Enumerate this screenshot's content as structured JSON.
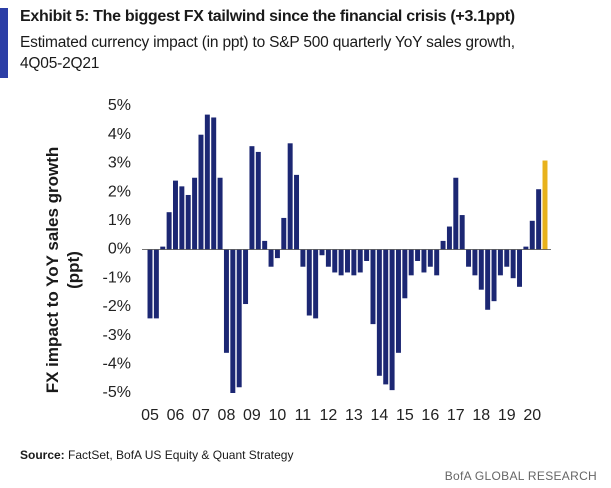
{
  "chart_data": {
    "type": "bar",
    "title": "Exhibit 5: The biggest FX tailwind since the financial crisis (+3.1ppt)",
    "subtitle": "Estimated currency impact (in ppt) to S&P 500 quarterly YoY sales growth, 4Q05-2Q21",
    "y_label": "FX impact to YoY sales growth (ppt)",
    "source_label": "Source:",
    "source": "FactSet, BofA US Equity & Quant Strategy",
    "brand": "BofA GLOBAL RESEARCH",
    "categories": [
      "05",
      null,
      null,
      null,
      "06",
      null,
      null,
      null,
      "07",
      null,
      null,
      null,
      "08",
      null,
      null,
      null,
      "09",
      null,
      null,
      null,
      "10",
      null,
      null,
      null,
      "11",
      null,
      null,
      null,
      "12",
      null,
      null,
      null,
      "13",
      null,
      null,
      null,
      "14",
      null,
      null,
      null,
      "15",
      null,
      null,
      null,
      "16",
      null,
      null,
      null,
      "17",
      null,
      null,
      null,
      "18",
      null,
      null,
      null,
      "19",
      null,
      null,
      null,
      "20",
      null,
      null
    ],
    "values": [
      -2.4,
      -2.4,
      0.1,
      1.3,
      2.4,
      2.2,
      1.9,
      2.5,
      4.0,
      4.7,
      4.6,
      2.5,
      -3.6,
      -5.0,
      -4.8,
      -1.9,
      3.6,
      3.4,
      0.3,
      -0.6,
      -0.3,
      1.1,
      3.7,
      2.6,
      -0.6,
      -2.3,
      -2.4,
      -0.2,
      -0.6,
      -0.8,
      -0.9,
      -0.8,
      -0.9,
      -0.8,
      -0.4,
      -2.6,
      -4.4,
      -4.7,
      -4.9,
      -3.6,
      -1.7,
      -0.9,
      -0.4,
      -0.8,
      -0.6,
      -0.9,
      0.3,
      0.8,
      2.5,
      1.2,
      -0.6,
      -0.9,
      -1.4,
      -2.1,
      -1.8,
      -0.9,
      -0.6,
      -1.0,
      -1.3,
      0.1,
      1.0,
      2.1,
      3.1
    ],
    "colors": [
      "#1c2773",
      "#1c2773",
      "#1c2773",
      "#1c2773",
      "#1c2773",
      "#1c2773",
      "#1c2773",
      "#1c2773",
      "#1c2773",
      "#1c2773",
      "#1c2773",
      "#1c2773",
      "#1c2773",
      "#1c2773",
      "#1c2773",
      "#1c2773",
      "#1c2773",
      "#1c2773",
      "#1c2773",
      "#1c2773",
      "#1c2773",
      "#1c2773",
      "#1c2773",
      "#1c2773",
      "#1c2773",
      "#1c2773",
      "#1c2773",
      "#1c2773",
      "#1c2773",
      "#1c2773",
      "#1c2773",
      "#1c2773",
      "#1c2773",
      "#1c2773",
      "#1c2773",
      "#1c2773",
      "#1c2773",
      "#1c2773",
      "#1c2773",
      "#1c2773",
      "#1c2773",
      "#1c2773",
      "#1c2773",
      "#1c2773",
      "#1c2773",
      "#1c2773",
      "#1c2773",
      "#1c2773",
      "#1c2773",
      "#1c2773",
      "#1c2773",
      "#1c2773",
      "#1c2773",
      "#1c2773",
      "#1c2773",
      "#1c2773",
      "#1c2773",
      "#1c2773",
      "#1c2773",
      "#1c2773",
      "#1c2773",
      "#1c2773",
      "#e8b21c"
    ],
    "ylim": [
      -5,
      5
    ],
    "yticks": [
      {
        "value": -5,
        "label": "-5%"
      },
      {
        "value": -4,
        "label": "-4%"
      },
      {
        "value": -3,
        "label": "-3%"
      },
      {
        "value": -2,
        "label": "-2%"
      },
      {
        "value": -1,
        "label": "-1%"
      },
      {
        "value": 0,
        "label": "0%"
      },
      {
        "value": 1,
        "label": "1%"
      },
      {
        "value": 2,
        "label": "2%"
      },
      {
        "value": 3,
        "label": "3%"
      },
      {
        "value": 4,
        "label": "4%"
      },
      {
        "value": 5,
        "label": "5%"
      }
    ],
    "grid": false,
    "zero_line": true
  }
}
